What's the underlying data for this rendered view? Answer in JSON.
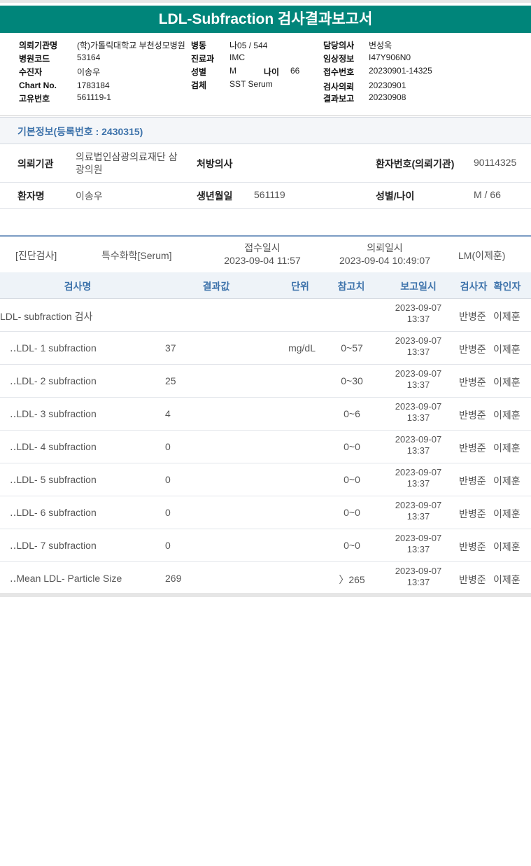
{
  "header": {
    "title": "LDL-Subfraction 검사결과보고서"
  },
  "patient_info": {
    "fields": [
      {
        "label": "의뢰기관명",
        "value": "(학)가톨릭대학교 부천성모병원"
      },
      {
        "label": "병동",
        "value": "나05 / 544"
      },
      {
        "label": "담당의사",
        "value": "변성욱"
      },
      {
        "label": "병원코드",
        "value": "53164"
      },
      {
        "label": "진료과",
        "value": "IMC"
      },
      {
        "label": "임상정보",
        "value": "I47Y906N0"
      },
      {
        "label": "수진자",
        "value": "이송우"
      },
      {
        "label": "성별",
        "value": "M"
      },
      {
        "label": "나이",
        "value": "66"
      },
      {
        "label": "접수번호",
        "value": "20230901-14325"
      },
      {
        "label": "Chart No.",
        "value": "1783184"
      },
      {
        "label": "검체",
        "value": "SST Serum"
      },
      {
        "label": "검사의뢰",
        "value": "20230901"
      },
      {
        "label": "고유번호",
        "value": "561119-1"
      },
      {
        "label": "결과보고",
        "value": "20230908"
      }
    ]
  },
  "basic_info": {
    "title": "기본정보(등록번호 : 2430315)",
    "fields": [
      {
        "label": "의뢰기관",
        "value": "의료법인삼광의료재단 삼광의원"
      },
      {
        "label": "처방의사"
      },
      {
        "label": "환자번호(의뢰기관)",
        "value": "90114325"
      },
      {
        "label": "환자명",
        "value": "이송우"
      },
      {
        "label": "생년월일",
        "value": "561119"
      },
      {
        "label": "성별/나이",
        "value": "M / 66"
      }
    ]
  },
  "order": {
    "category": "[진단검사]",
    "specimen": "특수화학[Serum]",
    "received_label": "접수일시",
    "received": "2023-09-04 11:57",
    "requested_label": "의뢰일시",
    "requested": "2023-09-04 10:49:07",
    "doctor": "LM(이제훈)"
  },
  "table": {
    "columns": [
      "검사명",
      "결과값",
      "단위",
      "참고치",
      "보고일시",
      "검사자",
      "확인자"
    ],
    "rows": [
      {
        "name": "LDL- subfraction 검사",
        "reported": "2023-09-07 13:37",
        "tester": "반병준",
        "confirmer": "이제훈"
      },
      {
        "name": "‥LDL- 1 subfraction",
        "result": "37",
        "unit": "mg/dL",
        "reference": "0~57",
        "reported": "2023-09-07 13:37",
        "tester": "반병준",
        "confirmer": "이제훈"
      },
      {
        "name": "‥LDL- 2 subfraction",
        "result": "25",
        "reference": "0~30",
        "reported": "2023-09-07 13:37",
        "tester": "반병준",
        "confirmer": "이제훈"
      },
      {
        "name": "‥LDL- 3 subfraction",
        "result": "4",
        "reference": "0~6",
        "reported": "2023-09-07 13:37",
        "tester": "반병준",
        "confirmer": "이제훈"
      },
      {
        "name": "‥LDL- 4 subfraction",
        "result": "0",
        "reference": "0~0",
        "reported": "2023-09-07 13:37",
        "tester": "반병준",
        "confirmer": "이제훈"
      },
      {
        "name": "‥LDL- 5 subfraction",
        "result": "0",
        "reference": "0~0",
        "reported": "2023-09-07 13:37",
        "tester": "반병준",
        "confirmer": "이제훈"
      },
      {
        "name": "‥LDL- 6 subfraction",
        "result": "0",
        "reference": "0~0",
        "reported": "2023-09-07 13:37",
        "tester": "반병준",
        "confirmer": "이제훈"
      },
      {
        "name": "‥LDL- 7 subfraction",
        "result": "0",
        "reference": "0~0",
        "reported": "2023-09-07 13:37",
        "tester": "반병준",
        "confirmer": "이제훈"
      },
      {
        "name": "‥Mean LDL- Particle Size",
        "result": "269",
        "reference": "〉265",
        "reported": "2023-09-07 13:37",
        "tester": "반병준",
        "confirmer": "이제훈"
      }
    ]
  }
}
